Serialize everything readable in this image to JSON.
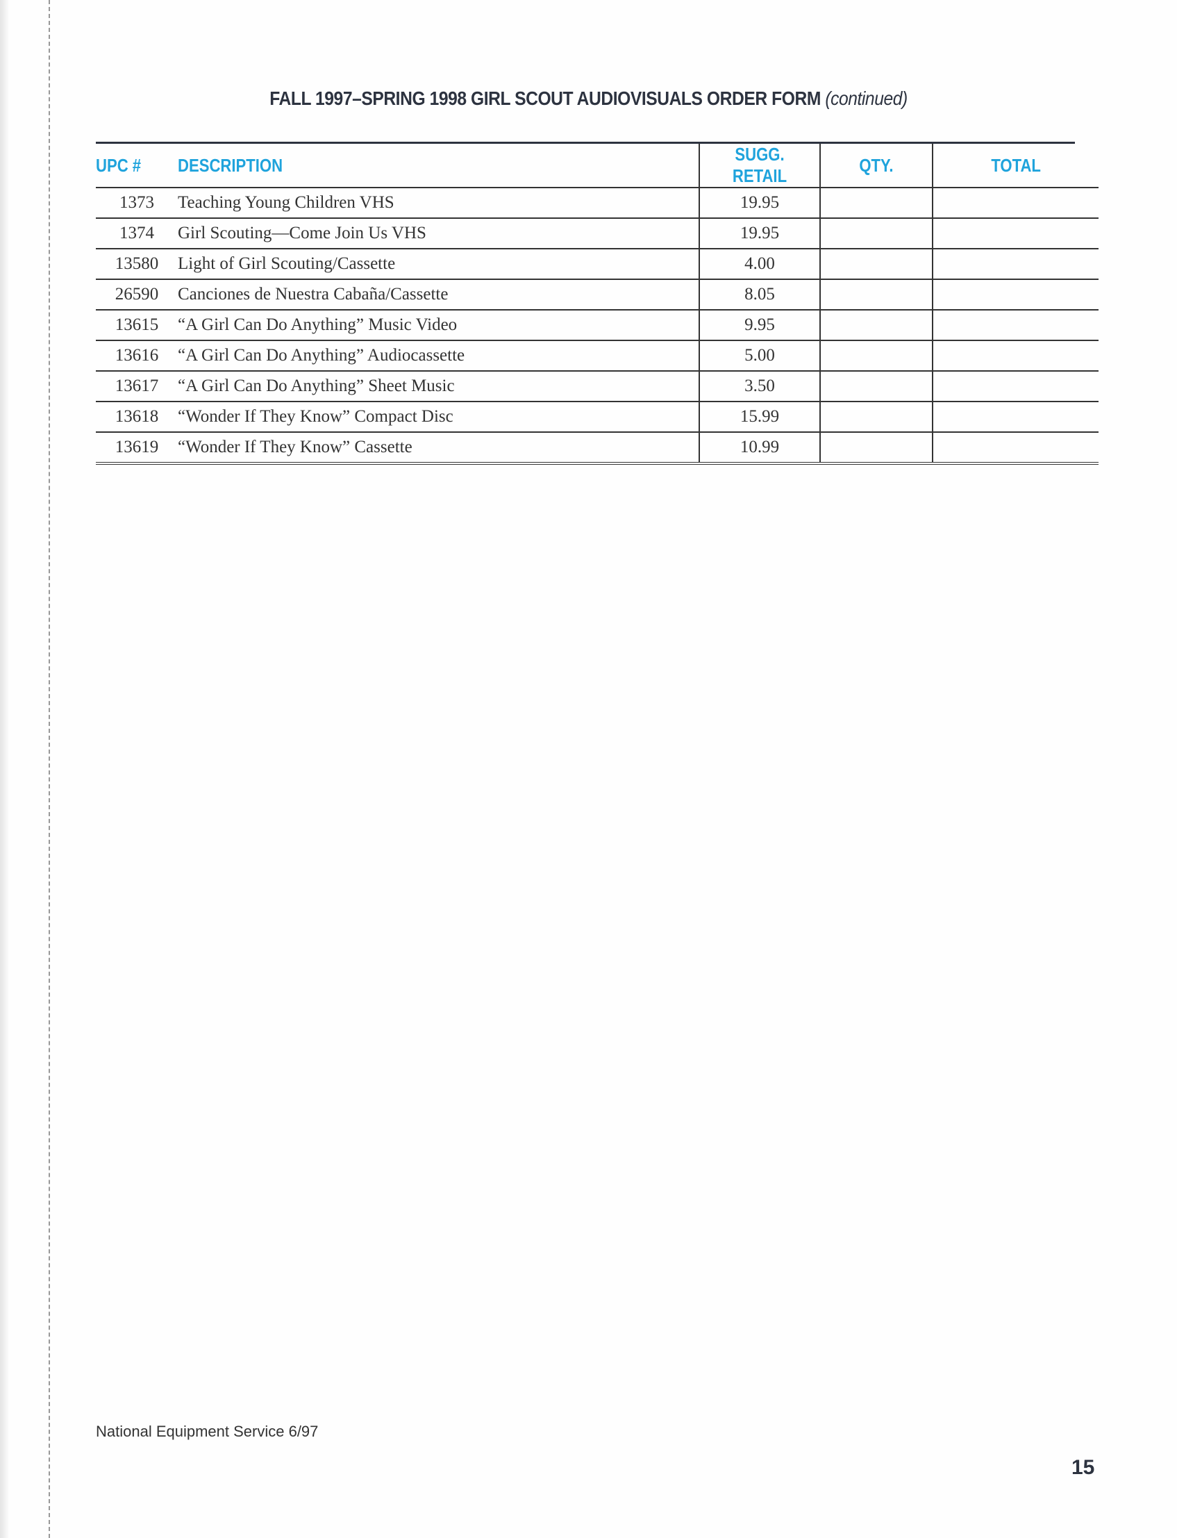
{
  "title": {
    "main": "FALL 1997–SPRING 1998 GIRL SCOUT AUDIOVISUALS ORDER FORM",
    "suffix": "(continued)"
  },
  "table": {
    "headers": [
      "UPC #",
      "DESCRIPTION",
      "SUGG. RETAIL",
      "QTY.",
      "TOTAL"
    ],
    "rows": [
      {
        "upc": "1373",
        "description": "Teaching Young Children   VHS",
        "price": "19.95",
        "qty": "",
        "total": ""
      },
      {
        "upc": "1374",
        "description": "Girl Scouting—Come Join Us   VHS",
        "price": "19.95",
        "qty": "",
        "total": ""
      },
      {
        "upc": "13580",
        "description": "Light of Girl Scouting/Cassette",
        "price": "4.00",
        "qty": "",
        "total": ""
      },
      {
        "upc": "26590",
        "description": "Canciones de Nuestra Cabaña/Cassette",
        "price": "8.05",
        "qty": "",
        "total": ""
      },
      {
        "upc": "13615",
        "description": "“A Girl Can Do Anything” Music Video",
        "price": "9.95",
        "qty": "",
        "total": ""
      },
      {
        "upc": "13616",
        "description": "“A Girl Can Do Anything” Audiocassette",
        "price": "5.00",
        "qty": "",
        "total": ""
      },
      {
        "upc": "13617",
        "description": "“A Girl Can Do Anything” Sheet Music",
        "price": "3.50",
        "qty": "",
        "total": ""
      },
      {
        "upc": "13618",
        "description": "“Wonder If They Know” Compact Disc",
        "price": "15.99",
        "qty": "",
        "total": ""
      },
      {
        "upc": "13619",
        "description": "“Wonder If They Know” Cassette",
        "price": "10.99",
        "qty": "",
        "total": ""
      }
    ]
  },
  "footer": {
    "publisher": "National Equipment Service  6/97",
    "page_number": "15"
  },
  "colors": {
    "header_text": "#1fa3dc",
    "title_text": "#2d3340"
  }
}
